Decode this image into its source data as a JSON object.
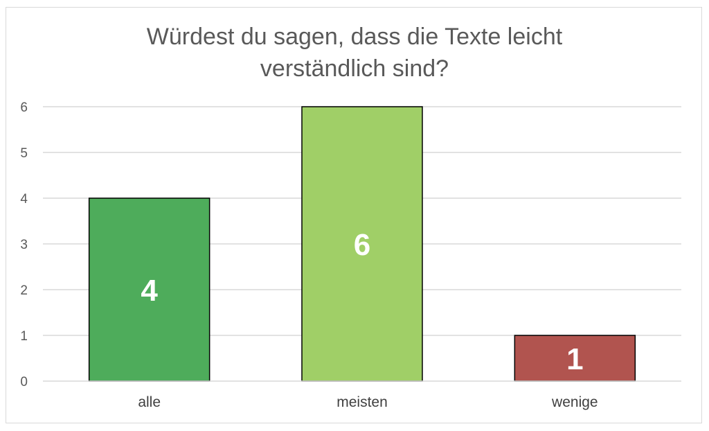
{
  "chart_data": {
    "type": "bar",
    "title": "Würdest du sagen, dass die Texte leicht\nverständlich sind?",
    "categories": [
      "alle",
      "meisten",
      "wenige"
    ],
    "values": [
      4,
      6,
      1
    ],
    "data_labels": [
      "4",
      "6",
      "1"
    ],
    "bar_colors": [
      "#4eac5b",
      "#a0cf67",
      "#b1544f"
    ],
    "xlabel": "",
    "ylabel": "",
    "ylim": [
      0,
      6
    ],
    "yticks": [
      0,
      1,
      2,
      3,
      4,
      5,
      6
    ],
    "grid": true,
    "legend": "none"
  }
}
